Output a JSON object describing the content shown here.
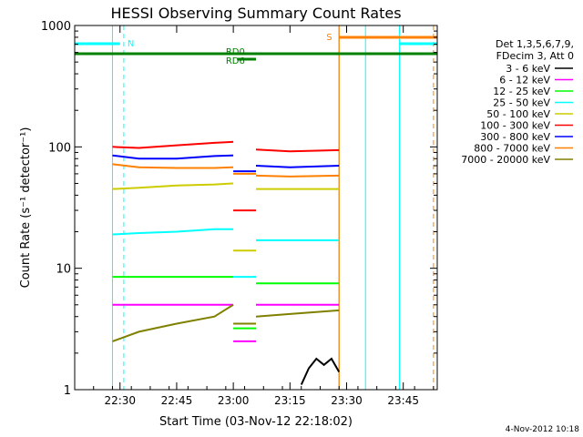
{
  "chart_data": {
    "type": "line",
    "title": "HESSI Observing Summary Count Rates",
    "xlabel": "Start Time (03-Nov-12 22:18:02)",
    "ylabel": "Count Rate (s⁻¹ detector⁻¹)",
    "x_axis": {
      "unit": "time (HH:MM, 03-Nov-12)",
      "range": [
        "22:18",
        "23:54"
      ],
      "ticks": [
        "22:30",
        "22:45",
        "23:00",
        "23:15",
        "23:30",
        "23:45"
      ],
      "tick_minutes": [
        30,
        45,
        60,
        75,
        90,
        105
      ]
    },
    "y_axis": {
      "scale": "log",
      "range": [
        1,
        1000
      ],
      "ticks": [
        "1",
        "10",
        "100",
        "1000"
      ],
      "tick_values": [
        1,
        10,
        100,
        1000
      ]
    },
    "legend": {
      "placement": "right",
      "header": [
        "Det 1,3,5,6,7,9,",
        "FDecim 3, Att 0"
      ]
    },
    "series": [
      {
        "name": "3 - 6 keV",
        "color": "#000000",
        "segments": [
          {
            "x": [
              "23:18",
              "23:20",
              "23:22",
              "23:24",
              "23:26",
              "23:28"
            ],
            "y": [
              1.1,
              1.5,
              1.8,
              1.6,
              1.8,
              1.4
            ]
          }
        ]
      },
      {
        "name": "6 - 12 keV",
        "color": "#ff00ff",
        "segments": [
          {
            "x": [
              "22:28",
              "22:35",
              "22:45",
              "22:55",
              "23:00"
            ],
            "y": [
              5.0,
              5.0,
              5.0,
              5.0,
              5.0
            ]
          },
          {
            "x": [
              "23:00",
              "23:06"
            ],
            "y": [
              2.5,
              2.5
            ]
          },
          {
            "x": [
              "23:06",
              "23:15",
              "23:28"
            ],
            "y": [
              5.0,
              5.0,
              5.0
            ]
          }
        ]
      },
      {
        "name": "12 - 25 keV",
        "color": "#00ff00",
        "segments": [
          {
            "x": [
              "22:28",
              "22:35",
              "22:45",
              "22:55",
              "23:00"
            ],
            "y": [
              8.5,
              8.5,
              8.5,
              8.5,
              8.5
            ]
          },
          {
            "x": [
              "23:00",
              "23:06"
            ],
            "y": [
              3.2,
              3.2
            ]
          },
          {
            "x": [
              "23:06",
              "23:15",
              "23:28"
            ],
            "y": [
              7.5,
              7.5,
              7.5
            ]
          }
        ]
      },
      {
        "name": "25 - 50 keV",
        "color": "#00ffff",
        "segments": [
          {
            "x": [
              "22:28",
              "22:35",
              "22:45",
              "22:55",
              "23:00"
            ],
            "y": [
              19,
              19.5,
              20,
              21,
              21
            ]
          },
          {
            "x": [
              "23:00",
              "23:06"
            ],
            "y": [
              8.5,
              8.5
            ]
          },
          {
            "x": [
              "23:06",
              "23:15",
              "23:28"
            ],
            "y": [
              17,
              17,
              17
            ]
          }
        ]
      },
      {
        "name": "50 - 100 keV",
        "color": "#cccc00",
        "segments": [
          {
            "x": [
              "22:28",
              "22:35",
              "22:45",
              "22:55",
              "23:00"
            ],
            "y": [
              45,
              46,
              48,
              49,
              50
            ]
          },
          {
            "x": [
              "23:00",
              "23:06"
            ],
            "y": [
              14,
              14
            ]
          },
          {
            "x": [
              "23:06",
              "23:15",
              "23:28"
            ],
            "y": [
              45,
              45,
              45
            ]
          }
        ]
      },
      {
        "name": "100 - 300 keV",
        "color": "#ff0000",
        "segments": [
          {
            "x": [
              "22:28",
              "22:35",
              "22:45",
              "22:55",
              "23:00"
            ],
            "y": [
              100,
              98,
              103,
              108,
              110
            ]
          },
          {
            "x": [
              "23:00",
              "23:06"
            ],
            "y": [
              30,
              30
            ]
          },
          {
            "x": [
              "23:06",
              "23:15",
              "23:28"
            ],
            "y": [
              95,
              92,
              94
            ]
          }
        ]
      },
      {
        "name": "300 - 800 keV",
        "color": "#0000ff",
        "segments": [
          {
            "x": [
              "22:28",
              "22:35",
              "22:45",
              "22:55",
              "23:00"
            ],
            "y": [
              85,
              80,
              80,
              84,
              85
            ]
          },
          {
            "x": [
              "23:00",
              "23:06"
            ],
            "y": [
              63,
              63
            ]
          },
          {
            "x": [
              "23:06",
              "23:15",
              "23:28"
            ],
            "y": [
              70,
              68,
              70
            ]
          }
        ]
      },
      {
        "name": "800 - 7000 keV",
        "color": "#ff8000",
        "segments": [
          {
            "x": [
              "22:28",
              "22:35",
              "22:45",
              "22:55",
              "23:00"
            ],
            "y": [
              72,
              68,
              67,
              67,
              68
            ]
          },
          {
            "x": [
              "23:00",
              "23:06"
            ],
            "y": [
              60,
              60
            ]
          },
          {
            "x": [
              "23:06",
              "23:15",
              "23:28"
            ],
            "y": [
              58,
              57,
              58
            ]
          }
        ]
      },
      {
        "name": "7000 - 20000 keV",
        "color": "#808000",
        "segments": [
          {
            "x": [
              "22:28",
              "22:35",
              "22:45",
              "22:55",
              "23:00"
            ],
            "y": [
              2.5,
              3.0,
              3.5,
              4.0,
              5.0
            ]
          },
          {
            "x": [
              "23:00",
              "23:06"
            ],
            "y": [
              3.5,
              3.5
            ]
          },
          {
            "x": [
              "23:06",
              "23:15",
              "23:28"
            ],
            "y": [
              4.0,
              4.2,
              4.5
            ]
          }
        ]
      }
    ],
    "vertical_lines": [
      {
        "x": "22:28",
        "style": "solid",
        "color": "#00ffff"
      },
      {
        "x": "22:31",
        "style": "dashed",
        "color": "#00ffff"
      },
      {
        "x": "23:28",
        "style": "solid",
        "color": "#808000"
      },
      {
        "x": "23:28",
        "style": "solid",
        "color": "#ff8000"
      },
      {
        "x": "23:35",
        "style": "solid",
        "color": "#00ffff"
      },
      {
        "x": "23:44",
        "style": "solid",
        "color": "#00ffff"
      },
      {
        "x": "23:53",
        "style": "dashed",
        "color": "#ff8000"
      }
    ],
    "flag_bars": [
      {
        "label": "",
        "color": "#00ffff",
        "x": [
          "22:18",
          "22:30"
        ]
      },
      {
        "label": "N",
        "color": "#00ffff",
        "x": [
          "22:31",
          "22:31"
        ]
      },
      {
        "label": "",
        "color": "#00ffff",
        "x": [
          "23:44",
          "23:54"
        ]
      },
      {
        "label": "S",
        "color": "#ff8000",
        "x": [
          "23:28",
          "23:54"
        ]
      },
      {
        "label": "RD0",
        "color": "#008000",
        "x": [
          "22:18",
          "23:54"
        ]
      },
      {
        "label": "RD6",
        "color": "#008000",
        "x": [
          "23:01",
          "23:06"
        ]
      }
    ],
    "annotations": {
      "N": "N",
      "S": "S",
      "RD0": "RD0",
      "RD6": "RD6"
    },
    "footer": "4-Nov-2012 10:18"
  }
}
